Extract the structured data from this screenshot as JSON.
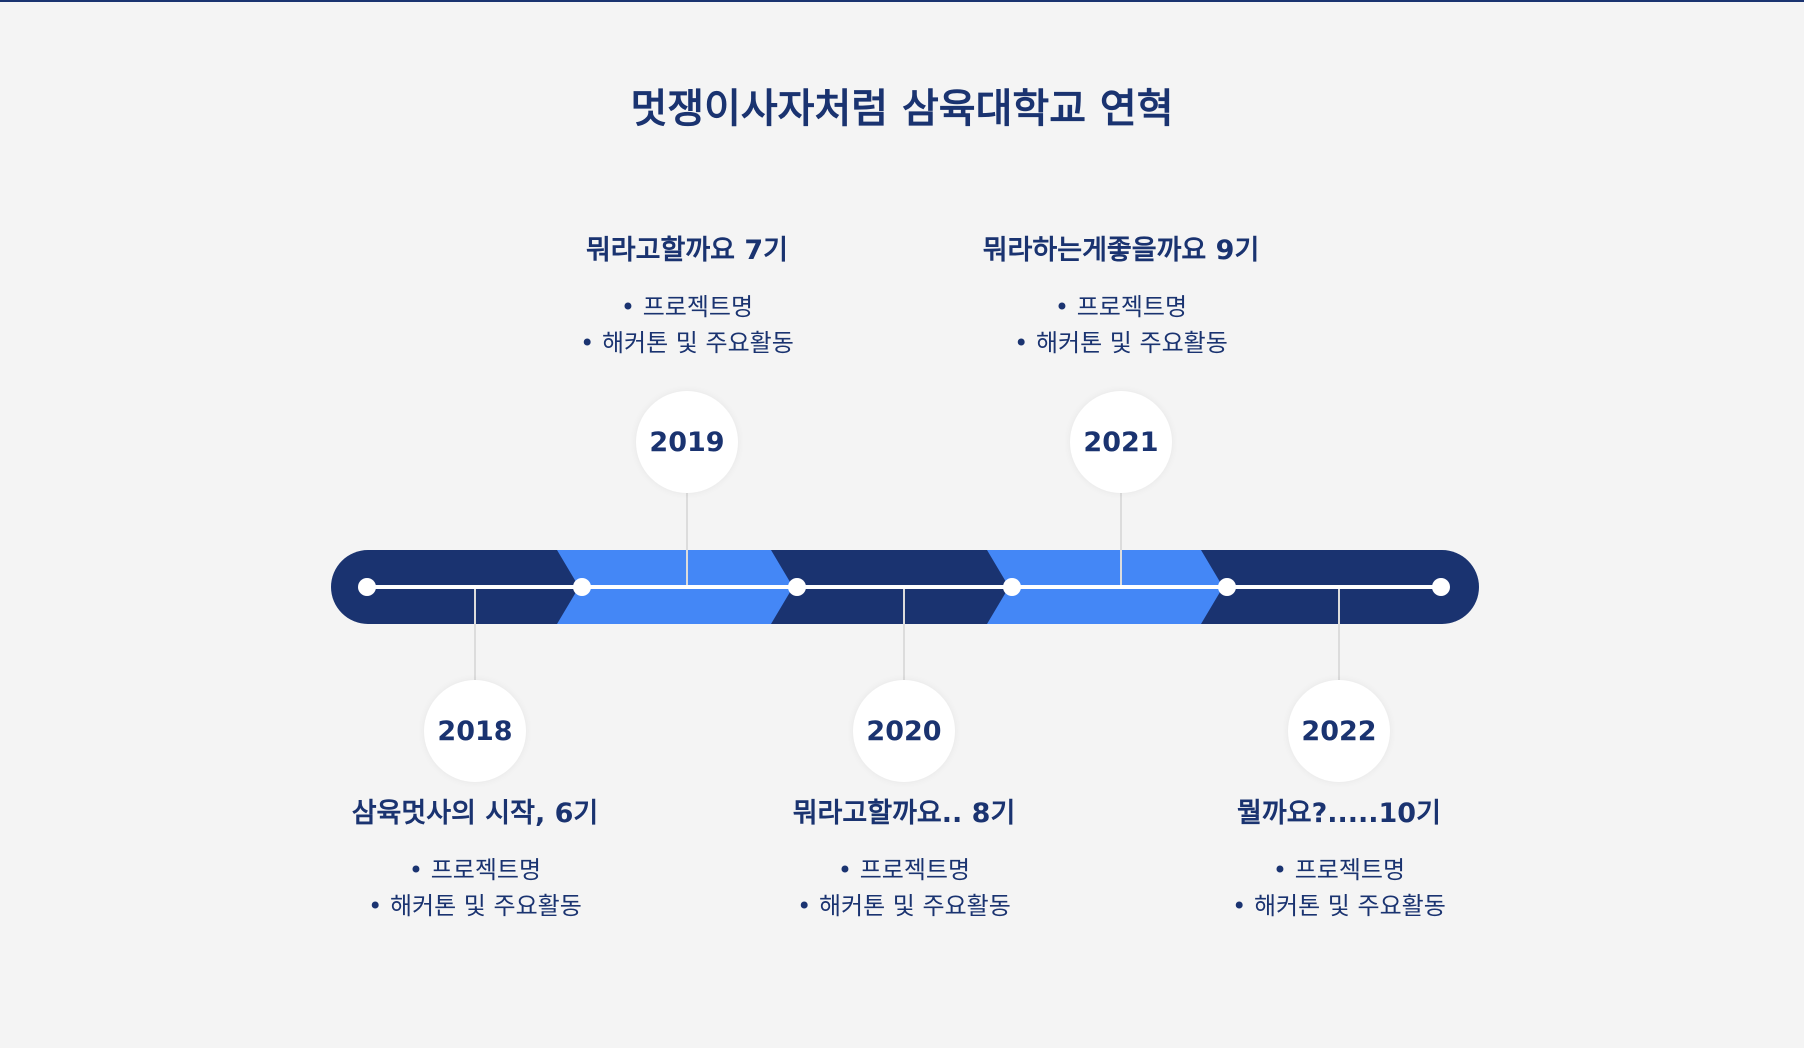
{
  "title": "멋쟁이사자처럼 삼육대학교 연혁",
  "colors": {
    "background": "#f4f4f4",
    "dark_navy": "#1a3370",
    "bright_blue": "#4487f6",
    "white": "#ffffff"
  },
  "bullet_glyph": "•",
  "milestones": [
    {
      "year": "2018",
      "heading": "삼육멋사의 시작, 6기",
      "items": [
        "프로젝트명",
        "해커톤 및 주요활동"
      ]
    },
    {
      "year": "2019",
      "heading": "뭐라고할까요 7기",
      "items": [
        "프로젝트명",
        "해커톤 및 주요활동"
      ]
    },
    {
      "year": "2020",
      "heading": "뭐라고할까요.. 8기",
      "items": [
        "프로젝트명",
        "해커톤 및 주요활동"
      ]
    },
    {
      "year": "2021",
      "heading": "뭐라하는게좋을까요 9기",
      "items": [
        "프로젝트명",
        "해커톤 및 주요활동"
      ]
    },
    {
      "year": "2022",
      "heading": "뭘까요?.....10기",
      "items": [
        "프로젝트명",
        "해커톤 및 주요활동"
      ]
    }
  ]
}
